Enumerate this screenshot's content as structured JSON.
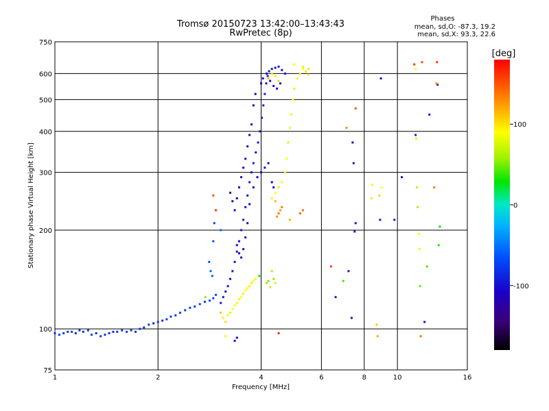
{
  "chart_data": {
    "type": "scatter",
    "title_lines": [
      "Tromsø 20150723 13:42:00–13:43:43",
      "RwPretec (8p)"
    ],
    "stats": {
      "heading": "Phases",
      "line_o": "mean, sd,O: -87.3, 19.2",
      "line_x": "mean, sd,X:  93.3, 22.6"
    },
    "xlabel": "Frequency [MHz]",
    "ylabel": "Stationary phase Virtual Height [km]",
    "x_scale": "log2",
    "y_scale": "log",
    "xlim": [
      1,
      16
    ],
    "ylim": [
      75,
      750
    ],
    "x_ticks": [
      1,
      2,
      4,
      6,
      8,
      10,
      16
    ],
    "x_tick_labels": [
      "1",
      "2",
      "4",
      "6",
      "8",
      "10",
      "16"
    ],
    "y_ticks": [
      75,
      100,
      200,
      300,
      400,
      500,
      600,
      750
    ],
    "y_tick_labels": [
      "75",
      "100",
      "200",
      "300",
      "400",
      "500",
      "600",
      "750"
    ],
    "grid": true,
    "colorbar": {
      "label": "[deg]",
      "range": [
        -180,
        180
      ],
      "ticks": [
        100,
        0,
        -100
      ],
      "tick_labels": [
        "100",
        "0",
        "-100"
      ]
    },
    "series": [
      {
        "name": "O",
        "points": [
          [
            1.0,
            97,
            -80
          ],
          [
            1.03,
            96,
            -80
          ],
          [
            1.06,
            97,
            -75
          ],
          [
            1.09,
            98,
            -80
          ],
          [
            1.12,
            98,
            -75
          ],
          [
            1.15,
            97,
            -85
          ],
          [
            1.18,
            99,
            -80
          ],
          [
            1.21,
            98,
            -85
          ],
          [
            1.25,
            99,
            -80
          ],
          [
            1.28,
            96,
            -75
          ],
          [
            1.32,
            97,
            -85
          ],
          [
            1.36,
            95,
            -80
          ],
          [
            1.4,
            96,
            -85
          ],
          [
            1.44,
            97,
            -80
          ],
          [
            1.48,
            98,
            -85
          ],
          [
            1.52,
            98,
            -80
          ],
          [
            1.57,
            99,
            -85
          ],
          [
            1.62,
            98,
            -80
          ],
          [
            1.67,
            99,
            -75
          ],
          [
            1.72,
            98,
            -85
          ],
          [
            1.77,
            100,
            -80
          ],
          [
            1.82,
            101,
            -85
          ],
          [
            1.88,
            103,
            -80
          ],
          [
            1.94,
            104,
            -90
          ],
          [
            2.0,
            105,
            -80
          ],
          [
            2.06,
            106,
            -85
          ],
          [
            2.12,
            107,
            -80
          ],
          [
            2.18,
            109,
            -75
          ],
          [
            2.25,
            110,
            -80
          ],
          [
            2.32,
            112,
            -75
          ],
          [
            2.4,
            114,
            -80
          ],
          [
            2.48,
            116,
            -75
          ],
          [
            2.56,
            117,
            -80
          ],
          [
            2.65,
            119,
            -70
          ],
          [
            2.74,
            121,
            -75
          ],
          [
            2.83,
            122,
            -70
          ],
          [
            2.9,
            124,
            -65
          ],
          [
            2.95,
            127,
            -70
          ],
          [
            2.82,
            160,
            -65
          ],
          [
            2.85,
            150,
            -60
          ],
          [
            2.88,
            145,
            -60
          ],
          [
            2.9,
            185,
            -65
          ],
          [
            2.92,
            210,
            -70
          ],
          [
            3.05,
            200,
            -55
          ],
          [
            3.05,
            120,
            -95
          ],
          [
            3.1,
            125,
            -100
          ],
          [
            3.15,
            130,
            -100
          ],
          [
            3.2,
            135,
            -95
          ],
          [
            3.25,
            142,
            -100
          ],
          [
            3.3,
            150,
            -95
          ],
          [
            3.35,
            160,
            -100
          ],
          [
            3.4,
            172,
            -95
          ],
          [
            3.45,
            185,
            -100
          ],
          [
            3.5,
            200,
            -95
          ],
          [
            3.55,
            215,
            -100
          ],
          [
            3.6,
            235,
            -95
          ],
          [
            3.65,
            255,
            -100
          ],
          [
            3.7,
            280,
            -95
          ],
          [
            3.75,
            300,
            -100
          ],
          [
            3.8,
            320,
            -95
          ],
          [
            3.86,
            345,
            -100
          ],
          [
            3.92,
            370,
            -95
          ],
          [
            3.97,
            400,
            -100
          ],
          [
            4.02,
            440,
            -95
          ],
          [
            4.06,
            480,
            -100
          ],
          [
            4.1,
            520,
            -95
          ],
          [
            4.14,
            560,
            -100
          ],
          [
            4.18,
            590,
            -95
          ],
          [
            4.22,
            610,
            -100
          ],
          [
            4.3,
            620,
            -95
          ],
          [
            4.4,
            625,
            -100
          ],
          [
            4.5,
            630,
            -95
          ],
          [
            4.6,
            615,
            -100
          ],
          [
            4.7,
            600,
            -95
          ],
          [
            3.25,
            260,
            -120
          ],
          [
            3.3,
            245,
            -115
          ],
          [
            3.35,
            230,
            -120
          ],
          [
            3.4,
            250,
            -115
          ],
          [
            3.45,
            270,
            -120
          ],
          [
            3.5,
            290,
            -115
          ],
          [
            3.55,
            310,
            -120
          ],
          [
            3.6,
            330,
            -115
          ],
          [
            3.65,
            360,
            -120
          ],
          [
            3.7,
            390,
            -115
          ],
          [
            3.75,
            420,
            -120
          ],
          [
            3.8,
            480,
            -115
          ],
          [
            3.85,
            520,
            -120
          ],
          [
            3.4,
            180,
            -110
          ],
          [
            3.45,
            170,
            -115
          ],
          [
            3.5,
            165,
            -110
          ],
          [
            3.55,
            175,
            -115
          ],
          [
            3.6,
            190,
            -110
          ],
          [
            3.65,
            210,
            -115
          ],
          [
            3.7,
            240,
            -110
          ],
          [
            3.8,
            270,
            -115
          ],
          [
            3.9,
            290,
            -110
          ],
          [
            4.0,
            300,
            -115
          ],
          [
            4.1,
            310,
            -110
          ],
          [
            4.2,
            320,
            -115
          ],
          [
            4.3,
            280,
            -110
          ],
          [
            4.35,
            270,
            -115
          ],
          [
            4.0,
            560,
            -105
          ],
          [
            4.05,
            580,
            -110
          ],
          [
            4.15,
            600,
            -105
          ],
          [
            4.25,
            570,
            -110
          ],
          [
            4.35,
            550,
            -105
          ],
          [
            4.45,
            540,
            -110
          ],
          [
            4.55,
            560,
            -105
          ],
          [
            3.35,
            92,
            -100
          ],
          [
            3.4,
            94,
            -105
          ],
          [
            4.5,
            97,
            165
          ],
          [
            7.2,
            150,
            -95
          ],
          [
            7.35,
            108,
            -100
          ],
          [
            7.4,
            370,
            -105
          ],
          [
            7.45,
            320,
            -100
          ],
          [
            7.5,
            198,
            -90
          ],
          [
            7.55,
            210,
            -100
          ],
          [
            8.9,
            215,
            -100
          ],
          [
            8.95,
            580,
            -100
          ],
          [
            9.8,
            215,
            -95
          ],
          [
            10.3,
            290,
            -100
          ],
          [
            11.3,
            390,
            -95
          ],
          [
            12.4,
            450,
            -100
          ],
          [
            13.1,
            555,
            -95
          ],
          [
            12.0,
            105,
            -100
          ],
          [
            6.6,
            125,
            -100
          ]
        ]
      },
      {
        "name": "X",
        "points": [
          [
            3.2,
            110,
            85
          ],
          [
            3.25,
            112,
            80
          ],
          [
            3.3,
            115,
            90
          ],
          [
            3.35,
            118,
            85
          ],
          [
            3.4,
            120,
            95
          ],
          [
            3.45,
            123,
            85
          ],
          [
            3.5,
            125,
            90
          ],
          [
            3.55,
            128,
            80
          ],
          [
            3.6,
            131,
            90
          ],
          [
            3.65,
            133,
            85
          ],
          [
            3.7,
            135,
            95
          ],
          [
            3.75,
            138,
            80
          ],
          [
            3.8,
            140,
            90
          ],
          [
            3.85,
            142,
            85
          ],
          [
            3.05,
            112,
            110
          ],
          [
            3.1,
            108,
            95
          ],
          [
            3.15,
            105,
            100
          ],
          [
            4.3,
            250,
            95
          ],
          [
            4.4,
            260,
            90
          ],
          [
            4.5,
            270,
            100
          ],
          [
            4.6,
            280,
            85
          ],
          [
            4.7,
            300,
            95
          ],
          [
            4.75,
            330,
            90
          ],
          [
            4.8,
            370,
            100
          ],
          [
            4.85,
            410,
            85
          ],
          [
            4.9,
            450,
            95
          ],
          [
            4.95,
            500,
            90
          ],
          [
            5.0,
            540,
            100
          ],
          [
            5.1,
            580,
            85
          ],
          [
            5.2,
            600,
            95
          ],
          [
            5.3,
            620,
            90
          ],
          [
            5.4,
            610,
            100
          ],
          [
            5.5,
            595,
            85
          ],
          [
            4.45,
            220,
            130
          ],
          [
            4.5,
            225,
            140
          ],
          [
            4.55,
            230,
            125
          ],
          [
            4.6,
            235,
            135
          ],
          [
            4.4,
            245,
            115
          ],
          [
            4.85,
            215,
            120
          ],
          [
            5.2,
            225,
            145
          ],
          [
            5.3,
            230,
            140
          ],
          [
            4.2,
            580,
            110
          ],
          [
            4.3,
            600,
            100
          ],
          [
            4.4,
            590,
            95
          ],
          [
            4.5,
            570,
            105
          ],
          [
            5.0,
            640,
            85
          ],
          [
            5.3,
            630,
            80
          ],
          [
            5.5,
            620,
            75
          ],
          [
            4.15,
            138,
            60
          ],
          [
            4.2,
            140,
            50
          ],
          [
            4.25,
            134,
            70
          ],
          [
            4.3,
            150,
            65
          ],
          [
            4.35,
            142,
            55
          ],
          [
            4.4,
            138,
            75
          ],
          [
            3.95,
            145,
            30
          ],
          [
            2.75,
            125,
            55
          ],
          [
            2.9,
            255,
            150
          ],
          [
            2.95,
            230,
            160
          ],
          [
            3.15,
            95,
            95
          ],
          [
            6.4,
            155,
            160
          ],
          [
            6.95,
            140,
            40
          ],
          [
            7.1,
            410,
            130
          ],
          [
            7.55,
            470,
            150
          ],
          [
            8.4,
            250,
            100
          ],
          [
            8.45,
            275,
            95
          ],
          [
            8.7,
            103,
            110
          ],
          [
            8.75,
            95,
            120
          ],
          [
            8.85,
            255,
            105
          ],
          [
            9.0,
            270,
            90
          ],
          [
            11.2,
            640,
            160
          ],
          [
            11.3,
            620,
            90
          ],
          [
            11.35,
            380,
            80
          ],
          [
            11.4,
            270,
            70
          ],
          [
            11.45,
            235,
            60
          ],
          [
            11.55,
            195,
            90
          ],
          [
            11.6,
            175,
            85
          ],
          [
            11.65,
            135,
            45
          ],
          [
            11.7,
            95,
            140
          ],
          [
            11.8,
            650,
            150
          ],
          [
            12.2,
            155,
            40
          ],
          [
            12.8,
            270,
            135
          ],
          [
            13.0,
            560,
            130
          ],
          [
            13.05,
            650,
            160
          ],
          [
            13.2,
            180,
            35
          ],
          [
            13.3,
            205,
            25
          ]
        ]
      }
    ]
  }
}
